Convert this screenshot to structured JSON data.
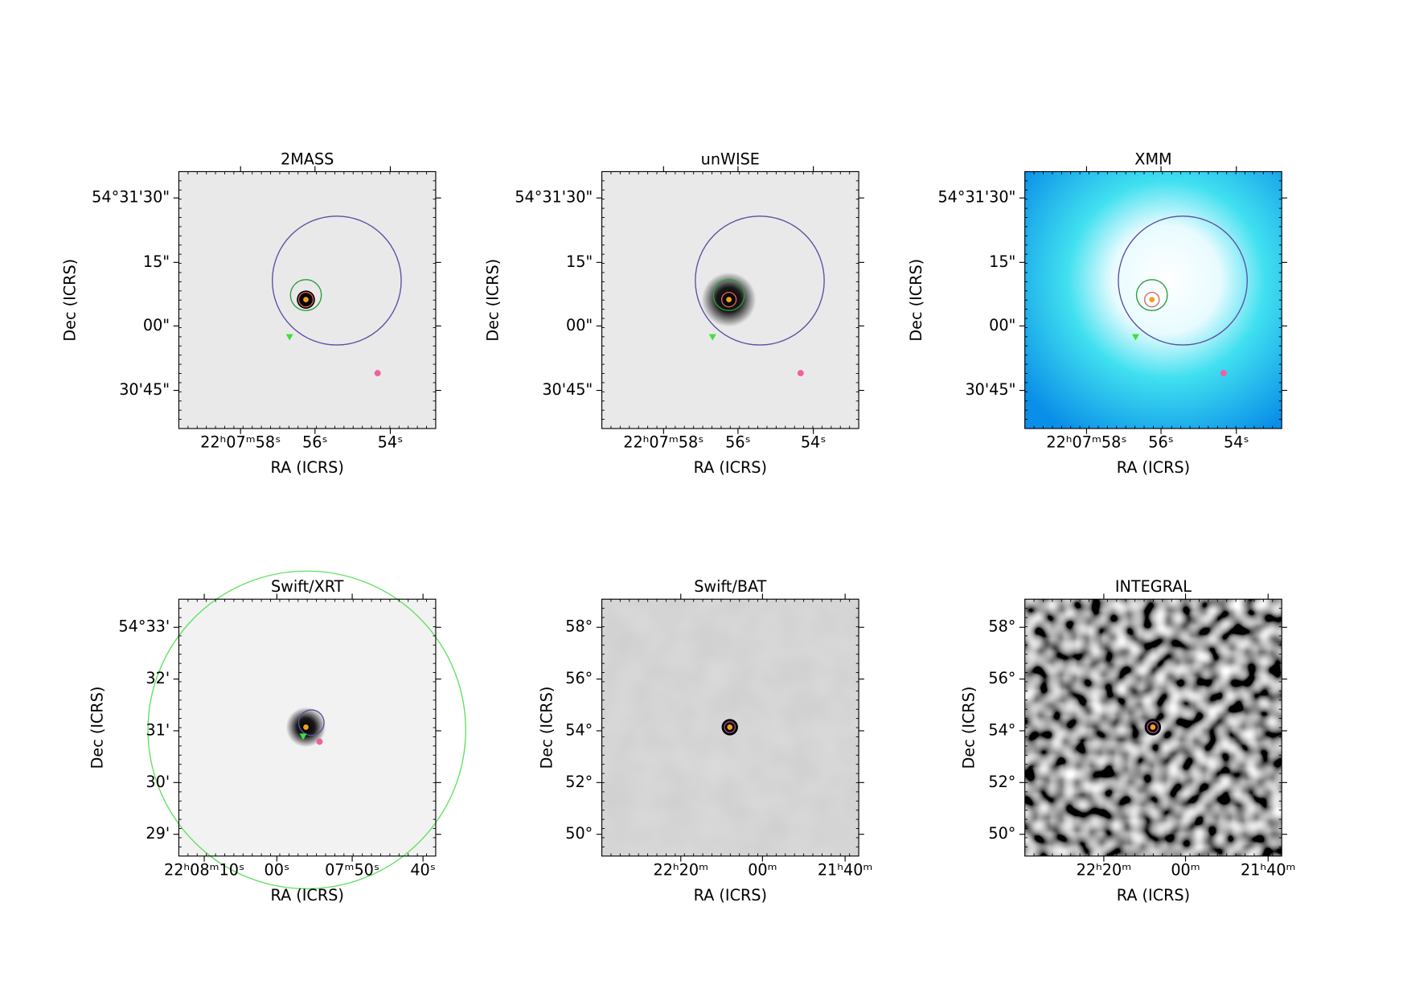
{
  "panels": [
    {
      "title": "2MASS",
      "x_label": "RA (ICRS)",
      "y_label": "Dec (ICRS)",
      "x_ticks": [
        "22ʰ07ᵐ58ˢ",
        "56ˢ",
        "54ˢ"
      ],
      "y_ticks": [
        "54°31'30\"",
        "15\"",
        "00\"",
        "30'45\""
      ]
    },
    {
      "title": "unWISE",
      "x_label": "RA (ICRS)",
      "y_label": "Dec (ICRS)",
      "x_ticks": [
        "22ʰ07ᵐ58ˢ",
        "56ˢ",
        "54ˢ"
      ],
      "y_ticks": [
        "54°31'30\"",
        "15\"",
        "00\"",
        "30'45\""
      ]
    },
    {
      "title": "XMM",
      "x_label": "RA (ICRS)",
      "y_label": "Dec (ICRS)",
      "x_ticks": [
        "22ʰ07ᵐ58ˢ",
        "56ˢ",
        "54ˢ"
      ],
      "y_ticks": [
        "54°31'30\"",
        "15\"",
        "00\"",
        "30'45\""
      ]
    },
    {
      "title": "Swift/XRT",
      "x_label": "RA (ICRS)",
      "y_label": "Dec (ICRS)",
      "x_ticks": [
        "22ʰ08ᵐ10ˢ",
        "00ˢ",
        "07ᵐ50ˢ",
        "40ˢ"
      ],
      "y_ticks": [
        "54°33'",
        "32'",
        "31'",
        "30'",
        "29'"
      ]
    },
    {
      "title": "Swift/BAT",
      "x_label": "RA (ICRS)",
      "y_label": "Dec (ICRS)",
      "x_ticks": [
        "22ʰ20ᵐ",
        "00ᵐ",
        "21ʰ40ᵐ"
      ],
      "y_ticks": [
        "58°",
        "56°",
        "54°",
        "52°",
        "50°"
      ]
    },
    {
      "title": "INTEGRAL",
      "x_label": "RA (ICRS)",
      "y_label": "Dec (ICRS)",
      "x_ticks": [
        "22ʰ20ᵐ",
        "00ᵐ",
        "21ʰ40ᵐ"
      ],
      "y_ticks": [
        "58°",
        "56°",
        "54°",
        "52°",
        "50°"
      ]
    }
  ]
}
